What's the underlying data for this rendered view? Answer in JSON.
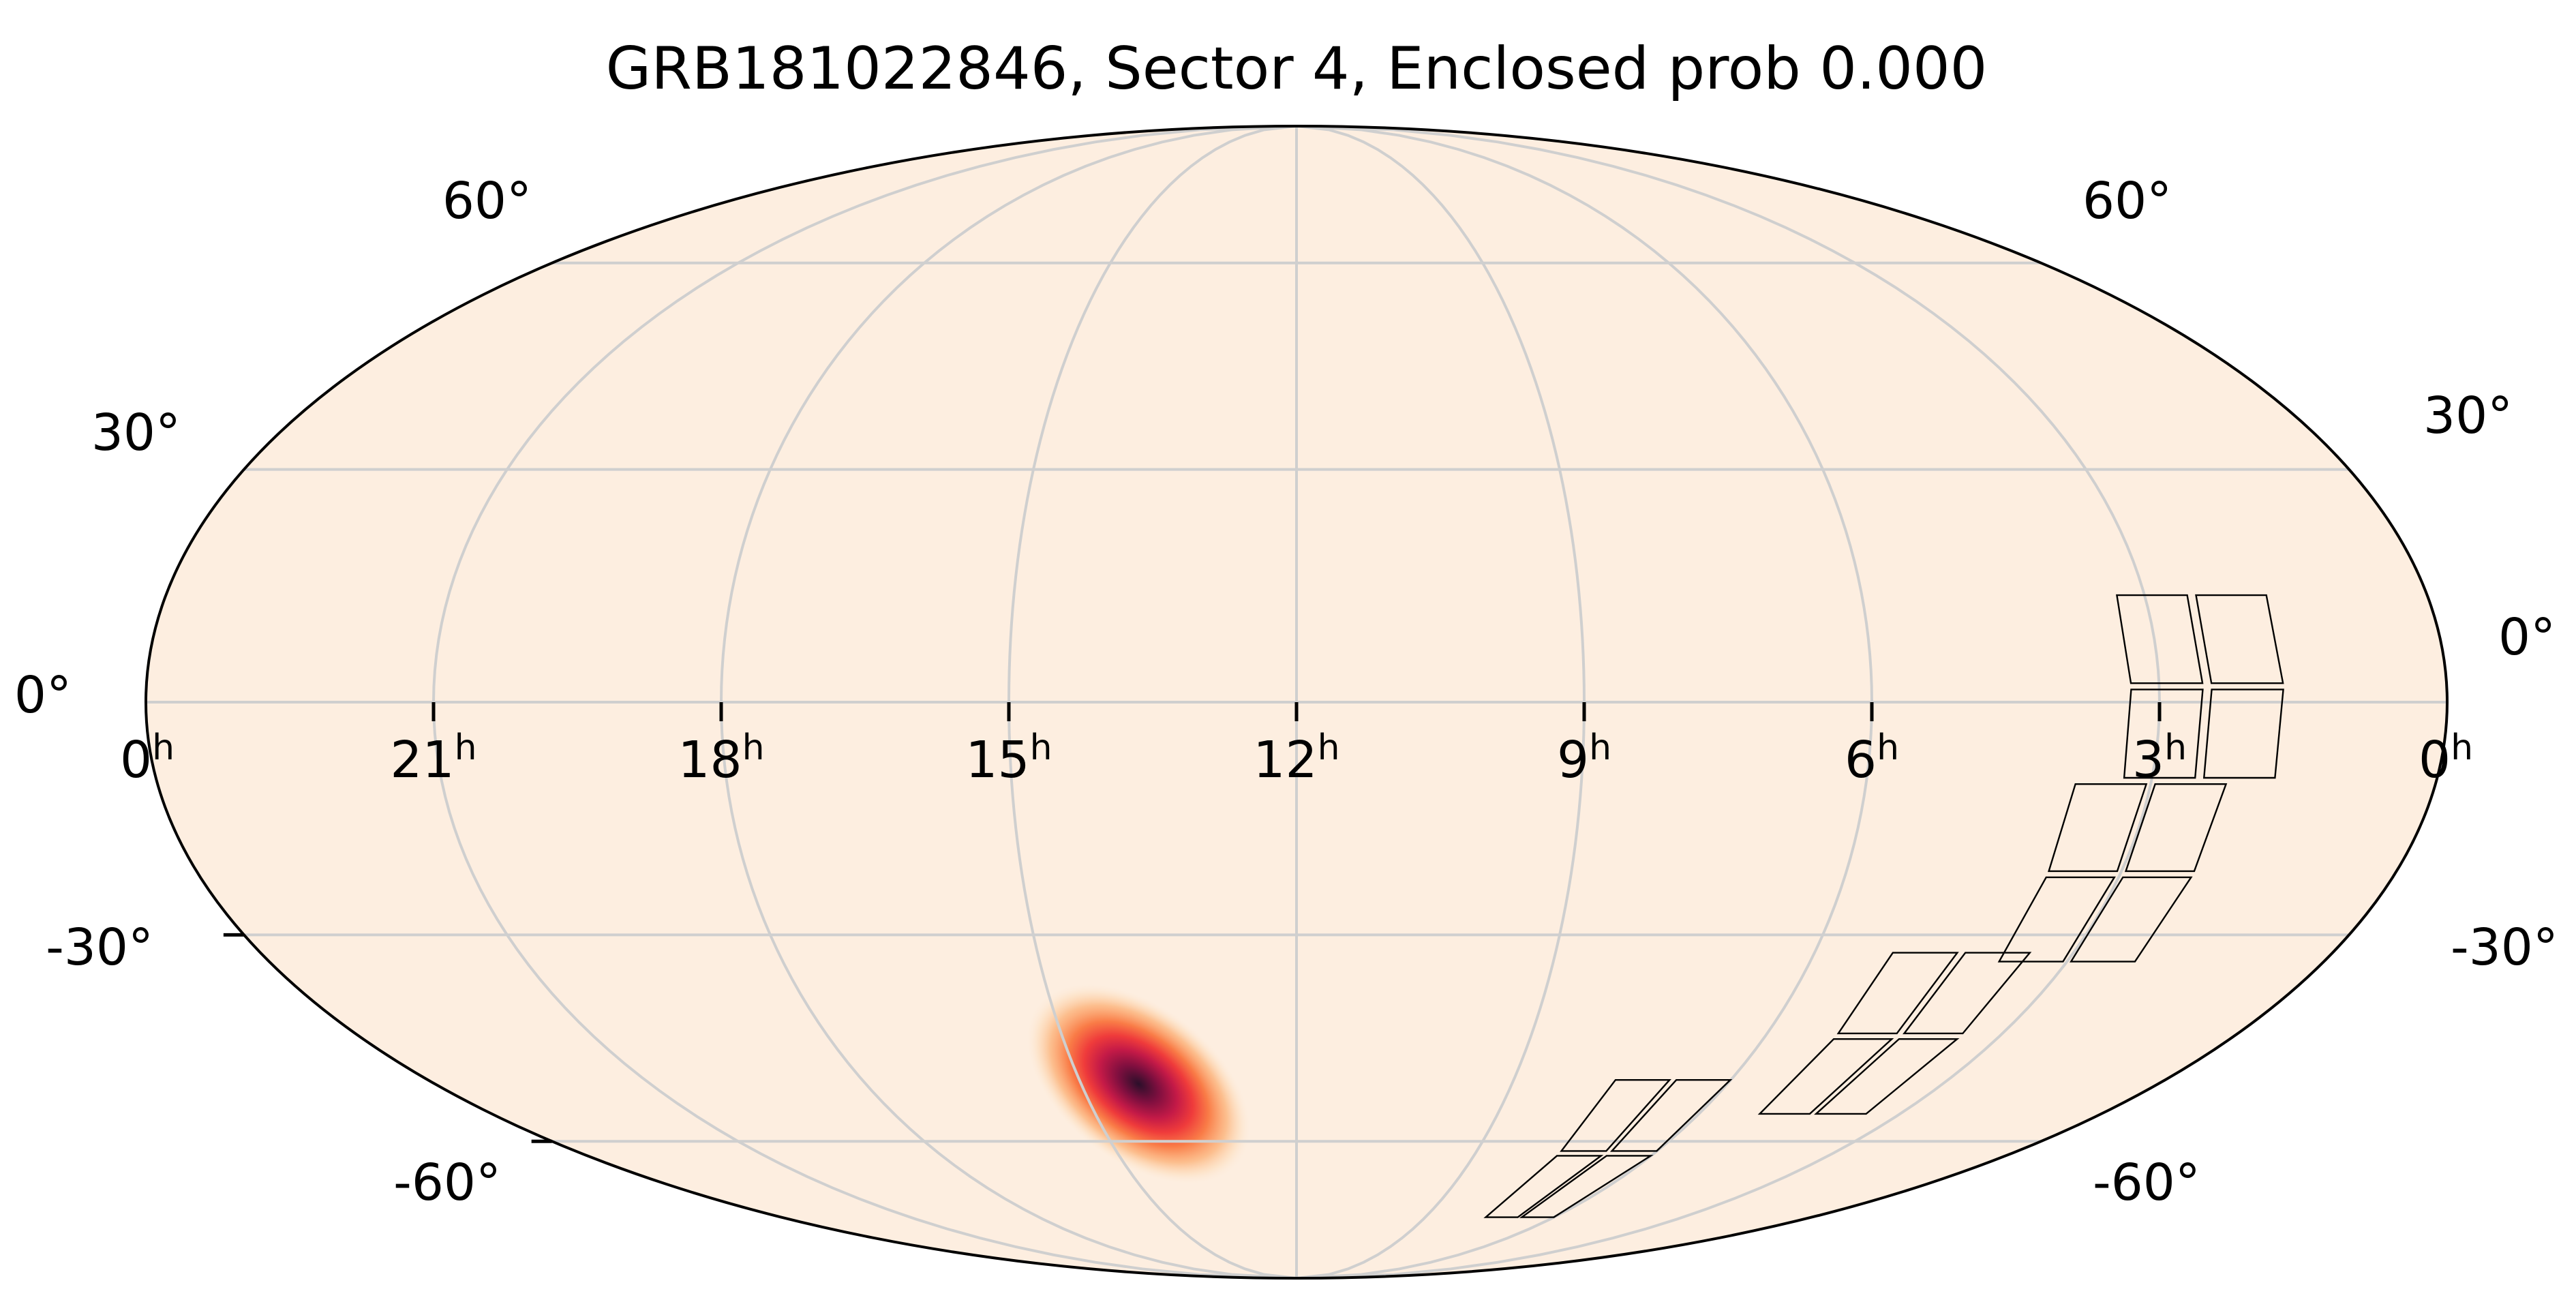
{
  "chart_data": {
    "type": "heatmap",
    "projection": "mollweide",
    "title": "GRB181022846, Sector 4, Enclosed prob 0.000",
    "background_color": "#fdeee0",
    "colormap": [
      "#fdeee0",
      "#fdd9b3",
      "#fcaa6b",
      "#f9763f",
      "#ef3b3b",
      "#c41a47",
      "#7f0f3f",
      "#2b0f2a"
    ],
    "grid": true,
    "ra_ticks": [
      {
        "ra_hours": 24,
        "label": "0",
        "suffix": "h"
      },
      {
        "ra_hours": 21,
        "label": "21",
        "suffix": "h"
      },
      {
        "ra_hours": 18,
        "label": "18",
        "suffix": "h"
      },
      {
        "ra_hours": 15,
        "label": "15",
        "suffix": "h"
      },
      {
        "ra_hours": 12,
        "label": "12",
        "suffix": "h"
      },
      {
        "ra_hours": 9,
        "label": "9",
        "suffix": "h"
      },
      {
        "ra_hours": 6,
        "label": "6",
        "suffix": "h"
      },
      {
        "ra_hours": 3,
        "label": "3",
        "suffix": "h"
      },
      {
        "ra_hours": 0,
        "label": "0",
        "suffix": "h"
      }
    ],
    "dec_ticks_left": [
      {
        "dec": 60,
        "label": "60°"
      },
      {
        "dec": 30,
        "label": "30°"
      },
      {
        "dec": 0,
        "label": "0°"
      },
      {
        "dec": -30,
        "label": "-30°"
      },
      {
        "dec": -60,
        "label": "-60°"
      }
    ],
    "dec_ticks_right": [
      {
        "dec": 60,
        "label": "60°"
      },
      {
        "dec": 30,
        "label": "30°"
      },
      {
        "dec": 0,
        "label": "0°"
      },
      {
        "dec": -30,
        "label": "-30°"
      },
      {
        "dec": -60,
        "label": "-60°"
      }
    ],
    "probability_blob": {
      "ra_hours": 14.2,
      "dec": -51,
      "peak": 1.0
    },
    "footprint_cameras": [
      {
        "ra_center_hours": 2.5,
        "dec_center": 2
      },
      {
        "ra_center_hours": 3.0,
        "dec_center": -22
      },
      {
        "ra_center_hours": 4.3,
        "dec_center": -44
      },
      {
        "ra_center_hours": 6.8,
        "dec_center": -62
      }
    ]
  }
}
